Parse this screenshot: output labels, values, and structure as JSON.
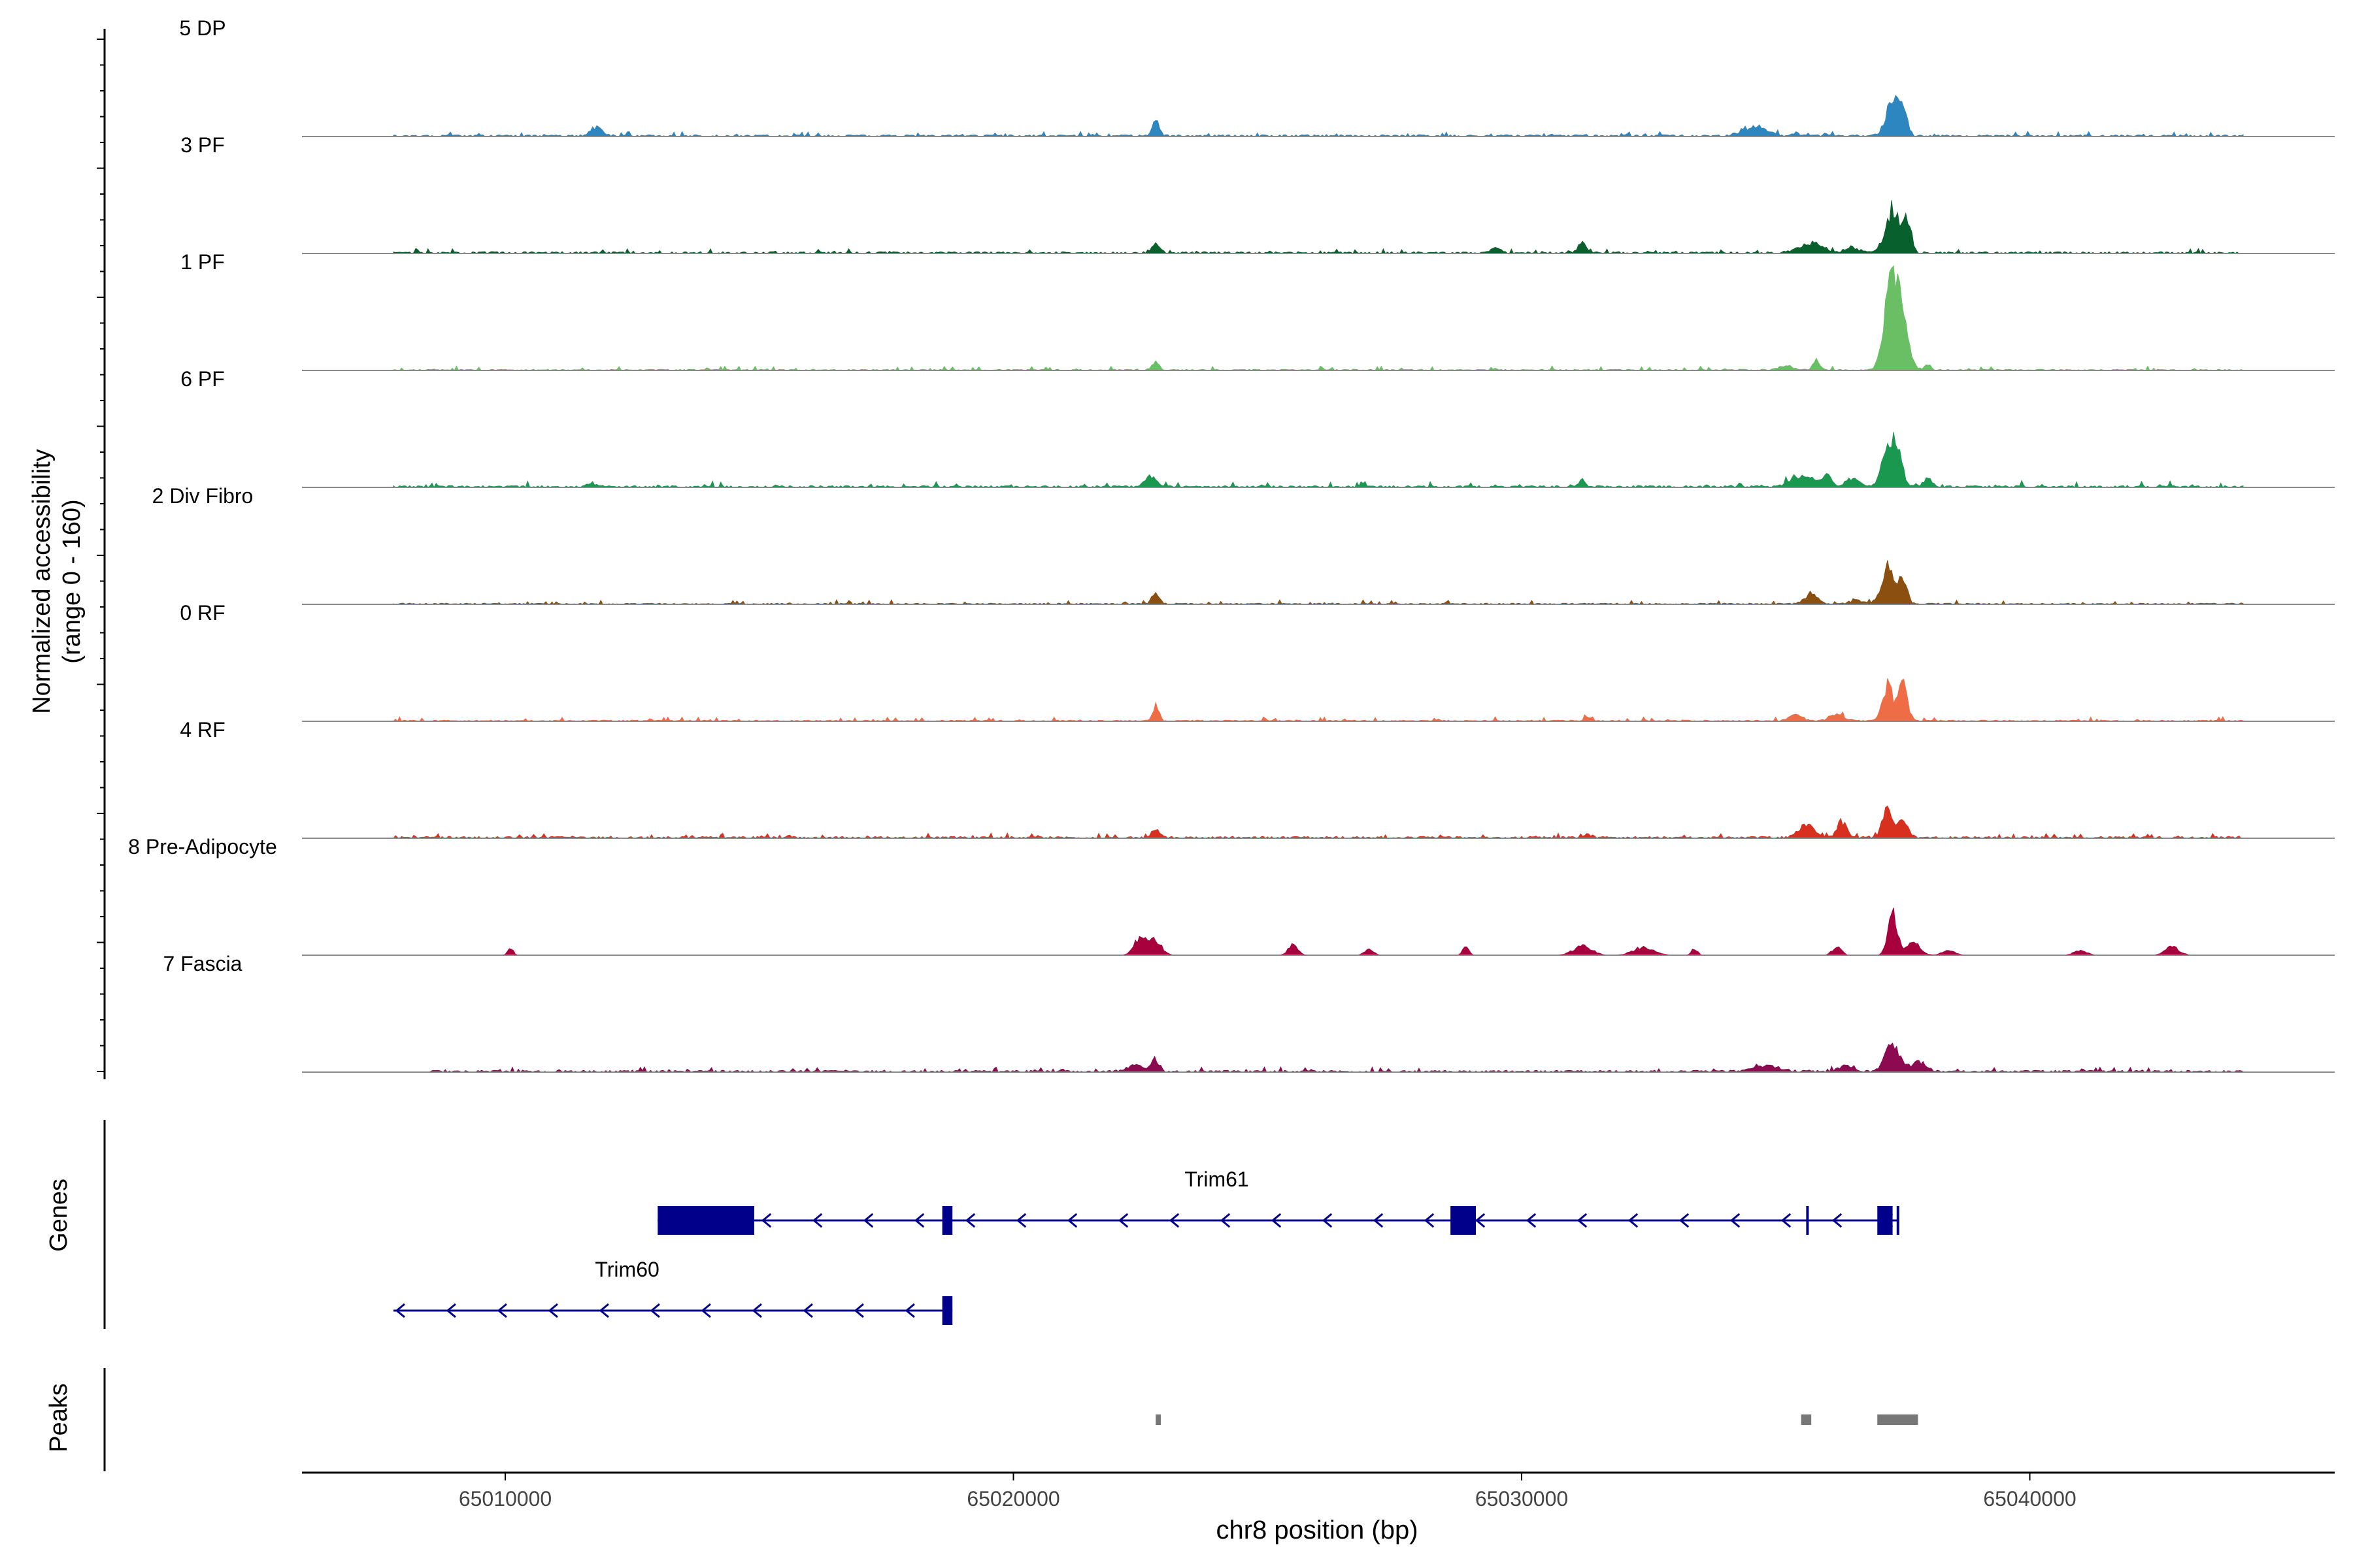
{
  "chart_data": {
    "type": "area",
    "title": "",
    "xlabel": "chr8 position (bp)",
    "ylabel": "Normalized accessibility",
    "ylabel_sub": "(range 0 - 160)",
    "x_range": [
      65006000,
      65046000
    ],
    "y_range": [
      0,
      160
    ],
    "x_ticks": [
      65010000,
      65020000,
      65030000,
      65040000
    ],
    "x_tick_labels": [
      "65010000",
      "65020000",
      "65030000",
      "65040000"
    ],
    "track_labels": {
      "genes": "Genes",
      "peaks": "Peaks"
    },
    "series": [
      {
        "name": "5 DP",
        "color": "#2e86c1",
        "baseline": 3,
        "noise": 2,
        "start": 65007800,
        "end": 65044200,
        "peaks": [
          [
            65011800,
            14,
            110
          ],
          [
            65022800,
            22,
            70
          ],
          [
            65034600,
            14,
            220
          ],
          [
            65035400,
            6,
            60
          ],
          [
            65036000,
            4,
            50
          ],
          [
            65037300,
            60,
            120
          ],
          [
            65037500,
            42,
            80
          ]
        ]
      },
      {
        "name": "3 PF",
        "color": "#08612c",
        "baseline": 3,
        "noise": 2,
        "start": 65007800,
        "end": 65044200,
        "peaks": [
          [
            65003000,
            0,
            10
          ],
          [
            65022800,
            12,
            80
          ],
          [
            65029500,
            8,
            80
          ],
          [
            65031200,
            14,
            90
          ],
          [
            65035700,
            14,
            230
          ],
          [
            65036500,
            9,
            130
          ],
          [
            65037300,
            64,
            140
          ],
          [
            65037600,
            48,
            70
          ]
        ]
      },
      {
        "name": "1 PF",
        "color": "#6abf64",
        "baseline": 2,
        "noise": 2,
        "start": 65007800,
        "end": 65044200,
        "peaks": [
          [
            65022800,
            12,
            70
          ],
          [
            65035200,
            6,
            150
          ],
          [
            65035800,
            16,
            70
          ],
          [
            65037200,
            70,
            110
          ],
          [
            65037400,
            128,
            150
          ],
          [
            65038000,
            8,
            60
          ]
        ]
      },
      {
        "name": "6 PF",
        "color": "#1a9850",
        "baseline": 3,
        "noise": 3,
        "start": 65007800,
        "end": 65044200,
        "peaks": [
          [
            65011700,
            6,
            70
          ],
          [
            65022700,
            16,
            100
          ],
          [
            65031200,
            12,
            60
          ],
          [
            65035500,
            18,
            200
          ],
          [
            65036000,
            16,
            100
          ],
          [
            65036500,
            14,
            120
          ],
          [
            65037200,
            54,
            110
          ],
          [
            65037400,
            60,
            90
          ],
          [
            65038000,
            12,
            90
          ]
        ]
      },
      {
        "name": "2 Div Fibro",
        "color": "#8b4f10",
        "baseline": 2,
        "noise": 2,
        "start": 65007800,
        "end": 65044200,
        "peaks": [
          [
            65022800,
            18,
            70
          ],
          [
            65035700,
            16,
            120
          ],
          [
            65036600,
            6,
            120
          ],
          [
            65037200,
            55,
            120
          ],
          [
            65037500,
            38,
            80
          ]
        ]
      },
      {
        "name": "0 RF",
        "color": "#ef6d46",
        "baseline": 2,
        "noise": 2,
        "start": 65007800,
        "end": 65044200,
        "peaks": [
          [
            65022800,
            24,
            60
          ],
          [
            65031300,
            6,
            70
          ],
          [
            65035400,
            10,
            120
          ],
          [
            65036200,
            10,
            140
          ],
          [
            65037200,
            54,
            100
          ],
          [
            65037500,
            54,
            90
          ]
        ]
      },
      {
        "name": "4 RF",
        "color": "#d7301f",
        "baseline": 3,
        "noise": 2,
        "start": 65007800,
        "end": 65044200,
        "peaks": [
          [
            65022800,
            12,
            80
          ],
          [
            65031300,
            6,
            70
          ],
          [
            65035600,
            18,
            150
          ],
          [
            65036300,
            22,
            100
          ],
          [
            65037200,
            40,
            100
          ],
          [
            65037500,
            32,
            90
          ]
        ]
      },
      {
        "name": "8 Pre-Adipocyte",
        "color": "#a8003c",
        "baseline": 0,
        "noise": 0,
        "start": 65007800,
        "end": 65044200,
        "peaks": [
          [
            65010100,
            12,
            50
          ],
          [
            65022500,
            26,
            120
          ],
          [
            65022800,
            22,
            120
          ],
          [
            65025500,
            16,
            90
          ],
          [
            65027000,
            8,
            90
          ],
          [
            65028900,
            12,
            60
          ],
          [
            65031200,
            14,
            180
          ],
          [
            65032400,
            12,
            200
          ],
          [
            65033400,
            10,
            60
          ],
          [
            65036200,
            12,
            90
          ],
          [
            65037300,
            60,
            90
          ],
          [
            65037700,
            18,
            140
          ],
          [
            65038400,
            8,
            120
          ],
          [
            65041000,
            8,
            120
          ],
          [
            65042800,
            12,
            140
          ]
        ]
      },
      {
        "name": "7 Fascia",
        "color": "#8b0a50",
        "baseline": 3,
        "noise": 2,
        "start": 65008500,
        "end": 65044200,
        "peaks": [
          [
            65022400,
            10,
            160
          ],
          [
            65022800,
            18,
            70
          ],
          [
            65034800,
            10,
            250
          ],
          [
            65036400,
            8,
            150
          ],
          [
            65037300,
            48,
            130
          ],
          [
            65037800,
            14,
            150
          ]
        ]
      }
    ],
    "genes": [
      {
        "name": "Trim61",
        "strand": "-",
        "start": 65013000,
        "end": 65037400,
        "exons": [
          [
            65013000,
            65014900
          ],
          [
            65018600,
            65018800
          ],
          [
            65028600,
            65029100
          ],
          [
            65035600,
            65035650
          ],
          [
            65037000,
            65037300
          ],
          [
            65037380,
            65037400
          ]
        ]
      },
      {
        "name": "Trim60",
        "strand": "-",
        "start": 65007800,
        "end": 65018800,
        "exons": [
          [
            65018600,
            65018800
          ]
        ]
      }
    ],
    "peaks_track": [
      [
        65022800,
        65022900
      ],
      [
        65035500,
        65035700
      ],
      [
        65037000,
        65037800
      ]
    ]
  }
}
